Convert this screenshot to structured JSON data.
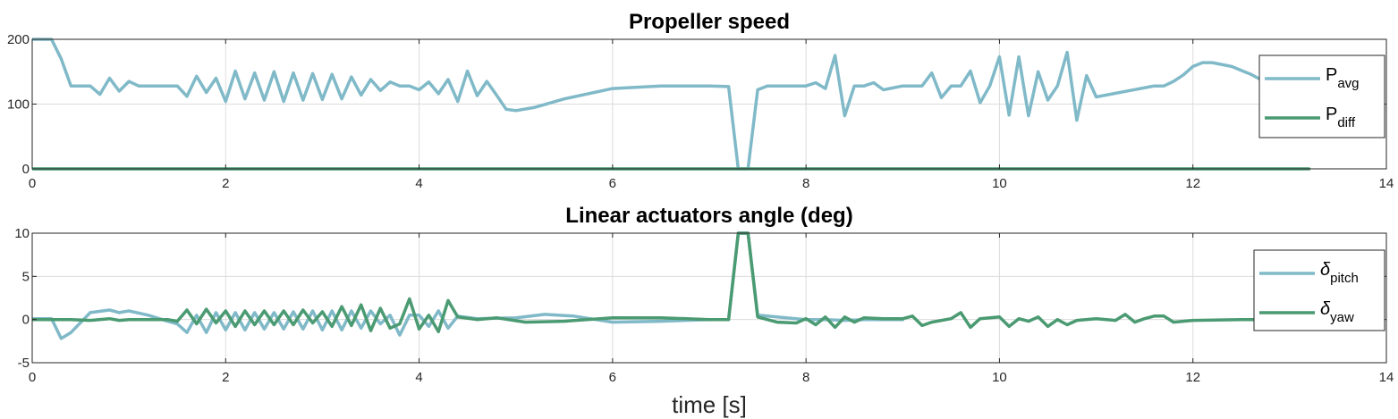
{
  "figure": {
    "xlabel": "time [s]"
  },
  "chart_data": [
    {
      "type": "line",
      "title": "Propeller speed",
      "xlim": [
        0,
        14
      ],
      "ylim": [
        0,
        200
      ],
      "xticks": [
        0,
        2,
        4,
        6,
        8,
        10,
        12,
        14
      ],
      "yticks": [
        0,
        100,
        200
      ],
      "grid": true,
      "legend_position": "right",
      "series": [
        {
          "name": "P",
          "sub": "avg",
          "color": "#80b9c8",
          "x": [
            0,
            0.2,
            0.3,
            0.4,
            0.6,
            0.7,
            0.8,
            0.9,
            1.0,
            1.1,
            1.5,
            1.6,
            1.7,
            1.8,
            1.9,
            2.0,
            2.1,
            2.2,
            2.3,
            2.4,
            2.5,
            2.6,
            2.7,
            2.8,
            2.9,
            3.0,
            3.1,
            3.2,
            3.3,
            3.4,
            3.5,
            3.6,
            3.7,
            3.8,
            3.9,
            4.0,
            4.1,
            4.2,
            4.3,
            4.4,
            4.5,
            4.6,
            4.7,
            4.8,
            4.9,
            5.0,
            5.2,
            5.5,
            6.0,
            6.5,
            7.0,
            7.2,
            7.3,
            7.4,
            7.5,
            7.6,
            7.7,
            8.0,
            8.1,
            8.2,
            8.3,
            8.4,
            8.5,
            8.6,
            8.7,
            8.8,
            9.0,
            9.2,
            9.3,
            9.4,
            9.5,
            9.6,
            9.7,
            9.8,
            9.9,
            10.0,
            10.1,
            10.2,
            10.3,
            10.4,
            10.5,
            10.6,
            10.7,
            10.8,
            10.9,
            11.0,
            11.6,
            11.7,
            11.8,
            11.9,
            12.0,
            12.1,
            12.2,
            12.4,
            12.6,
            12.7
          ],
          "y": [
            200,
            200,
            170,
            128,
            128,
            115,
            140,
            120,
            135,
            128,
            128,
            112,
            143,
            118,
            140,
            104,
            151,
            108,
            148,
            106,
            150,
            104,
            148,
            106,
            147,
            107,
            146,
            108,
            142,
            114,
            138,
            121,
            134,
            128,
            128,
            122,
            134,
            116,
            138,
            104,
            151,
            113,
            135,
            114,
            92,
            90,
            95,
            108,
            124,
            128,
            128,
            127,
            0,
            0,
            122,
            128,
            128,
            128,
            133,
            124,
            175,
            82,
            128,
            128,
            133,
            122,
            128,
            128,
            148,
            110,
            128,
            128,
            151,
            102,
            128,
            173,
            83,
            173,
            82,
            150,
            106,
            128,
            180,
            75,
            144,
            111,
            128,
            128,
            135,
            145,
            158,
            164,
            164,
            158,
            146,
            138
          ]
        },
        {
          "name": "P",
          "sub": "diff",
          "color": "#4a9a72",
          "x": [
            0,
            13.2
          ],
          "y": [
            0,
            0
          ]
        }
      ]
    },
    {
      "type": "line",
      "title": "Linear actuators angle (deg)",
      "xlim": [
        0,
        14
      ],
      "ylim": [
        -5,
        10
      ],
      "xticks": [
        0,
        2,
        4,
        6,
        8,
        10,
        12,
        14
      ],
      "yticks": [
        -5,
        0,
        5,
        10
      ],
      "grid": true,
      "legend_position": "right",
      "series": [
        {
          "name": "δ",
          "sub": "pitch",
          "color": "#80b9c8",
          "x": [
            0,
            0.2,
            0.3,
            0.4,
            0.6,
            0.8,
            0.9,
            1.0,
            1.2,
            1.4,
            1.5,
            1.6,
            1.7,
            1.8,
            1.9,
            2.0,
            2.1,
            2.2,
            2.3,
            2.4,
            2.5,
            2.6,
            2.7,
            2.8,
            2.9,
            3.0,
            3.1,
            3.2,
            3.3,
            3.4,
            3.5,
            3.6,
            3.7,
            3.8,
            3.9,
            4.0,
            4.1,
            4.2,
            4.3,
            4.4,
            4.6,
            5.0,
            5.3,
            5.6,
            6.0,
            6.5,
            7.0,
            7.2,
            7.3,
            7.4,
            7.5,
            7.7,
            8.0,
            8.2,
            8.4,
            8.6,
            9.0
          ],
          "y": [
            0.1,
            0.1,
            -2.2,
            -1.5,
            0.8,
            1.1,
            0.8,
            1.0,
            0.5,
            -0.2,
            -0.5,
            -1.5,
            0.5,
            -1.5,
            0.8,
            -1.2,
            0.8,
            -1.2,
            0.8,
            -1.1,
            0.8,
            -1.1,
            0.9,
            -1.1,
            1.0,
            -1.2,
            1.0,
            -1.2,
            1.0,
            -1.0,
            1.0,
            -0.5,
            0.5,
            -1.8,
            0.5,
            0.5,
            -0.8,
            1.0,
            -1.0,
            0.4,
            0.1,
            0.2,
            0.6,
            0.4,
            -0.3,
            -0.2,
            0.0,
            0.0,
            10,
            10,
            0.5,
            0.3,
            0.0,
            0.0,
            -0.1,
            0.0,
            0.0
          ]
        },
        {
          "name": "δ",
          "sub": "yaw",
          "color": "#4a9a72",
          "x": [
            0,
            0.4,
            0.6,
            0.8,
            0.9,
            1.0,
            1.4,
            1.5,
            1.6,
            1.7,
            1.8,
            1.9,
            2.0,
            2.1,
            2.2,
            2.3,
            2.4,
            2.5,
            2.6,
            2.7,
            2.8,
            2.9,
            3.0,
            3.1,
            3.2,
            3.3,
            3.4,
            3.5,
            3.6,
            3.7,
            3.8,
            3.9,
            4.0,
            4.1,
            4.2,
            4.3,
            4.4,
            4.6,
            4.8,
            5.1,
            5.5,
            6.0,
            6.5,
            7.0,
            7.2,
            7.3,
            7.4,
            7.5,
            7.7,
            7.9,
            8.0,
            8.1,
            8.2,
            8.3,
            8.4,
            8.5,
            8.6,
            8.8,
            9.0,
            9.1,
            9.2,
            9.3,
            9.5,
            9.6,
            9.7,
            9.8,
            10.0,
            10.1,
            10.2,
            10.3,
            10.4,
            10.5,
            10.6,
            10.7,
            10.8,
            11.0,
            11.2,
            11.3,
            11.4,
            11.5,
            11.6,
            11.7,
            11.8,
            12.0,
            12.5,
            13.0
          ],
          "y": [
            0,
            0,
            -0.1,
            0.1,
            -0.1,
            0.0,
            0.0,
            -0.2,
            1.1,
            -0.5,
            1.2,
            -0.4,
            1.0,
            -0.8,
            1.0,
            -0.6,
            1.0,
            -0.6,
            1.0,
            -0.6,
            1.1,
            -0.4,
            0.9,
            -0.8,
            1.5,
            -0.7,
            1.7,
            -1.3,
            1.3,
            -1.0,
            -0.5,
            2.4,
            -1.1,
            0.5,
            -1.4,
            2.2,
            0.3,
            0.0,
            0.2,
            -0.3,
            -0.2,
            0.2,
            0.2,
            0.0,
            0.0,
            10,
            10,
            0.3,
            -0.3,
            -0.4,
            0.1,
            -0.6,
            0.3,
            -0.9,
            0.3,
            -0.3,
            0.2,
            0.1,
            0.1,
            0.4,
            -0.7,
            -0.3,
            0.1,
            0.8,
            -0.9,
            0.1,
            0.3,
            -0.8,
            0.1,
            -0.2,
            0.3,
            -0.8,
            0.0,
            -0.6,
            -0.1,
            0.1,
            -0.1,
            0.6,
            -0.3,
            0.1,
            0.4,
            0.4,
            -0.3,
            -0.1,
            0.0,
            0.0
          ]
        }
      ]
    }
  ]
}
